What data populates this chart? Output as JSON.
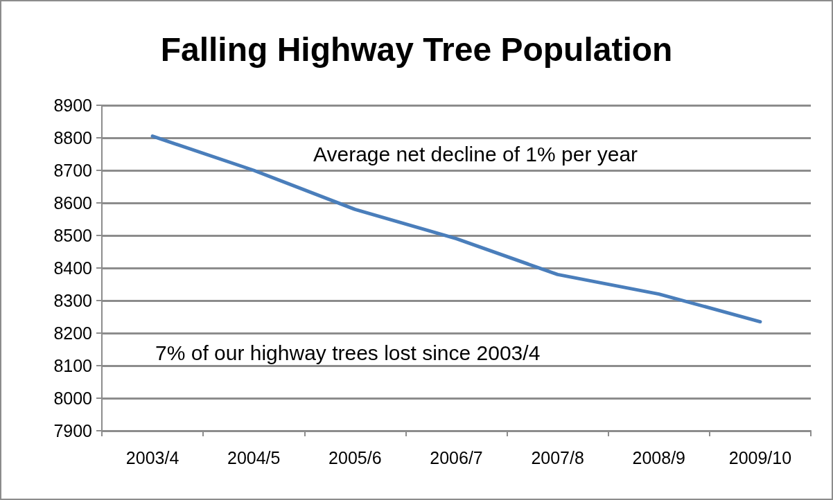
{
  "chart_data": {
    "type": "line",
    "title": "Falling Highway Tree Population",
    "categories": [
      "2003/4",
      "2004/5",
      "2005/6",
      "2006/7",
      "2007/8",
      "2008/9",
      "2009/10"
    ],
    "series": [
      {
        "color": "#4a7ebb",
        "values": [
          8805,
          8700,
          8580,
          8490,
          8380,
          8320,
          8235
        ]
      }
    ],
    "ylim": [
      7900,
      8900
    ],
    "yticks": [
      7900,
      8000,
      8100,
      8200,
      8300,
      8400,
      8500,
      8600,
      8700,
      8800,
      8900
    ],
    "grid": "y",
    "marker": "none",
    "line_style": "solid",
    "annotations": [
      "Average net decline of 1% per year",
      "7% of our highway trees lost since 2003/4"
    ]
  }
}
